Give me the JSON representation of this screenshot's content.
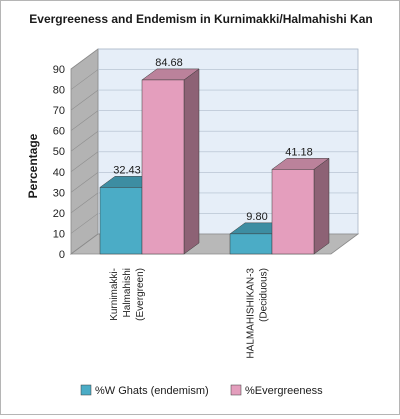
{
  "chart_data": {
    "type": "bar",
    "title": "Evergreeness and Endemism in Kurnimakki/Halmahishi Kan",
    "ylabel": "Percentage",
    "xlabel": "",
    "ylim": [
      0,
      90
    ],
    "yticks": [
      0,
      10,
      20,
      30,
      40,
      50,
      60,
      70,
      80,
      90
    ],
    "categories": [
      "Kurnimakki-Halmahishi (Evergreen)",
      "HALMAHISHIKAN-3 (Deciduous)"
    ],
    "category_lines": [
      [
        "Kurnimakki-",
        "Halmahishi",
        "(Evergreen)"
      ],
      [
        "HALMAHISHIKAN-3",
        "(Deciduous)"
      ]
    ],
    "series": [
      {
        "name": "%W Ghats (endemism)",
        "values": [
          32.43,
          9.8
        ],
        "labels": [
          "32.43",
          "9.80"
        ],
        "color": "#4bacc6"
      },
      {
        "name": "%Evergreeness",
        "values": [
          84.68,
          41.18
        ],
        "labels": [
          "84.68",
          "41.18"
        ],
        "color": "#e49ebd"
      }
    ],
    "grid": true,
    "legend_position": "bottom",
    "style": "3d-clustered-column"
  }
}
